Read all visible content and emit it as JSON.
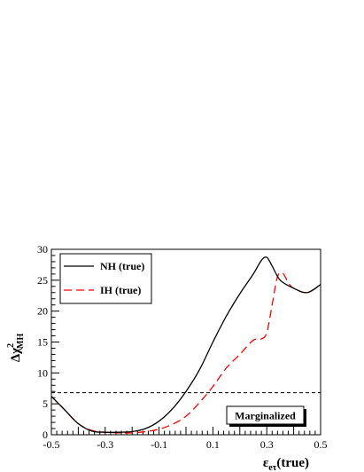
{
  "chart_data": {
    "type": "line",
    "xlabel": {
      "base": "ε",
      "sub": "eτ",
      "suffix": "(true)"
    },
    "ylabel": {
      "prefix": "Δχ",
      "sup": "2",
      "sub": "MH"
    },
    "xlim": [
      -0.5,
      0.5
    ],
    "ylim": [
      0,
      30
    ],
    "x_tick_labels": [
      "-0.5",
      "-0.3",
      "-0.1",
      "0.1",
      "0.3",
      "0.5"
    ],
    "x_tick_values": [
      -0.5,
      -0.3,
      -0.1,
      0.1,
      0.3,
      0.5
    ],
    "y_tick_labels": [
      "0",
      "5",
      "10",
      "15",
      "20",
      "25",
      "30"
    ],
    "y_tick_values": [
      0,
      5,
      10,
      15,
      20,
      25,
      30
    ],
    "legend_placement": "top-left",
    "grid": false,
    "annotation": "Marginalized",
    "threshold": {
      "y": 6.8,
      "style": "dashed",
      "color": "#000000"
    },
    "series": [
      {
        "name": "NH (true)",
        "color": "#000000",
        "style": "solid",
        "x": [
          -0.5,
          -0.45,
          -0.4,
          -0.35,
          -0.3,
          -0.25,
          -0.2,
          -0.15,
          -0.1,
          -0.05,
          0.0,
          0.05,
          0.1,
          0.15,
          0.2,
          0.25,
          0.28,
          0.3,
          0.32,
          0.35,
          0.4,
          0.45,
          0.5
        ],
        "y": [
          6.2,
          4.0,
          1.8,
          0.6,
          0.4,
          0.4,
          0.5,
          1.0,
          2.2,
          4.2,
          7.0,
          10.5,
          15.0,
          19.2,
          22.8,
          26.0,
          28.2,
          28.7,
          27.3,
          25.0,
          23.7,
          23.0,
          24.3
        ]
      },
      {
        "name": "IH (true)",
        "color": "#ff0000",
        "style": "dashed",
        "x": [
          -0.5,
          -0.45,
          -0.4,
          -0.35,
          -0.3,
          -0.25,
          -0.2,
          -0.15,
          -0.1,
          -0.05,
          0.0,
          0.05,
          0.1,
          0.15,
          0.2,
          0.25,
          0.28,
          0.3,
          0.32,
          0.34,
          0.36,
          0.38,
          0.4,
          0.45,
          0.5
        ],
        "y": [
          6.2,
          4.0,
          1.8,
          0.7,
          0.4,
          0.3,
          0.3,
          0.5,
          0.9,
          1.7,
          3.0,
          5.2,
          7.8,
          10.8,
          13.0,
          15.3,
          15.5,
          16.5,
          21.0,
          25.6,
          26.1,
          24.6,
          23.7,
          23.0,
          24.3
        ]
      }
    ]
  }
}
